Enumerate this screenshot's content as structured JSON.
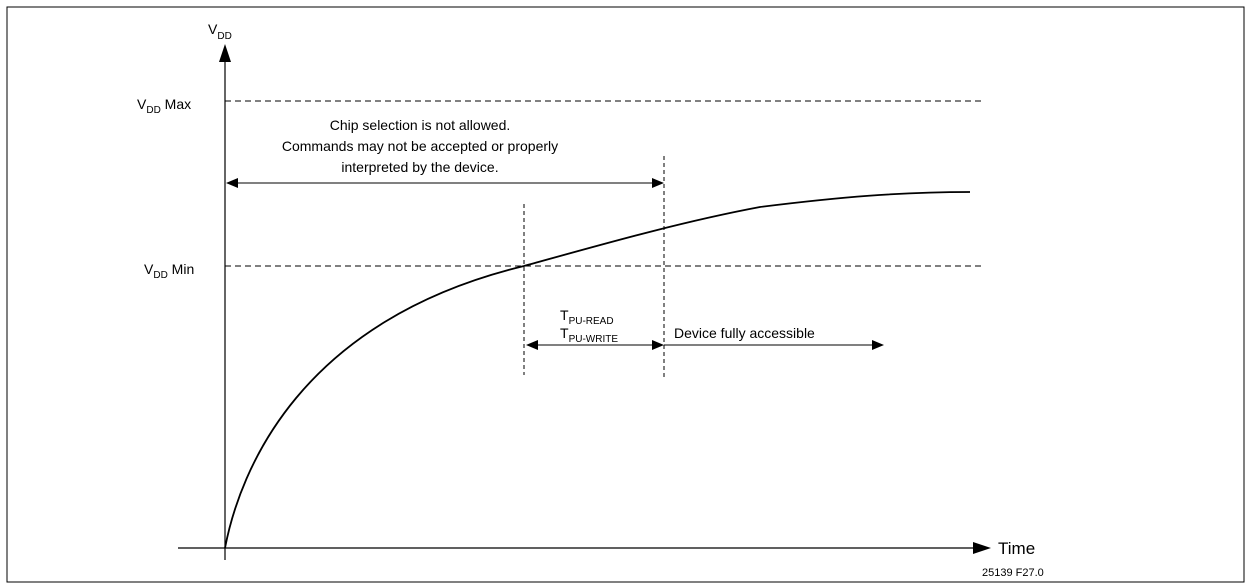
{
  "diagram": {
    "y_axis_label": {
      "main": "V",
      "sub": "DD"
    },
    "x_axis_label": "Time",
    "vdd_max_label": {
      "main": "V",
      "sub": "DD",
      "suffix": " Max"
    },
    "vdd_min_label": {
      "main": "V",
      "sub": "DD",
      "suffix": " Min"
    },
    "note_lines": [
      "Chip selection is not allowed.",
      "Commands may not be accepted or properly",
      "interpreted by the device."
    ],
    "tpu_read": {
      "main": "T",
      "sub": "PU-READ"
    },
    "tpu_write": {
      "main": "T",
      "sub": "PU-WRITE"
    },
    "accessible_label": "Device fully accessible",
    "figure_id": "25139 F27.0"
  },
  "colors": {
    "line": "#000000",
    "background": "#ffffff"
  }
}
